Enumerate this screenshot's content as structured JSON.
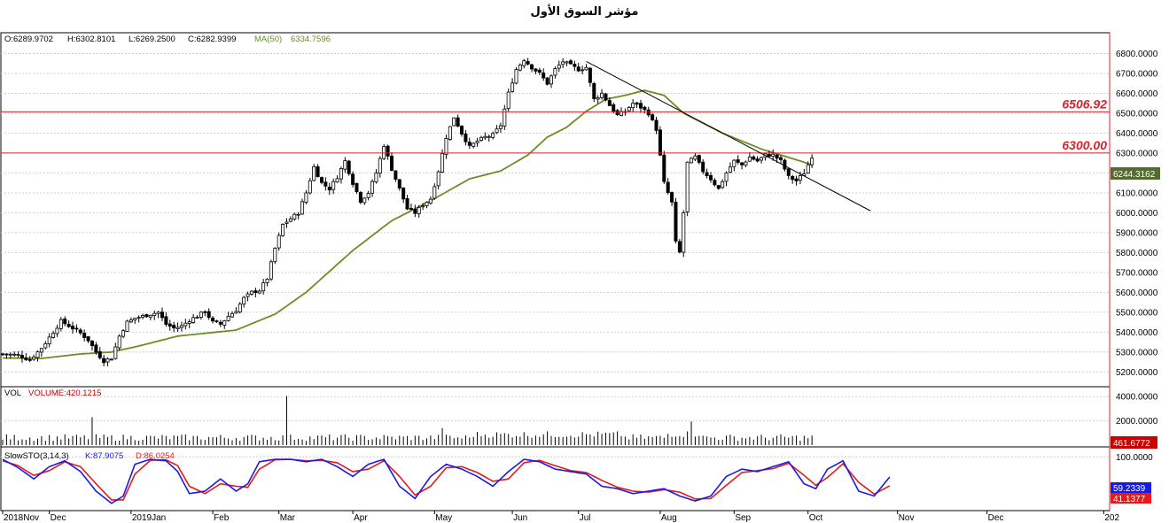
{
  "title": "مؤشر السوق الأول",
  "ohlc_readout": {
    "open": "O:6289.9702",
    "high": "H:6302.8101",
    "low": "L:6269.2500",
    "close": "C:6282.9399",
    "ma_label": "MA(50)",
    "ma_value": "6334.7596"
  },
  "colors": {
    "up_candle": "#ffffff",
    "down_candle": "#000000",
    "ma_line": "#6b8e23",
    "resistance_line": "#e0202a",
    "price_label_bg": "#556b2f",
    "volume_label_bg": "#cc0000",
    "k_line": "#1a1ae6",
    "d_line": "#e61a1a"
  },
  "chart_data": [
    {
      "type": "candlestick",
      "name": "price",
      "y_ticks": [
        "6800.0000",
        "6700.0000",
        "6600.0000",
        "6500.0000",
        "6400.0000",
        "6300.0000",
        "6200.0000",
        "6100.0000",
        "6000.0000",
        "5900.0000",
        "5800.0000",
        "5700.0000",
        "5600.0000",
        "5500.0000",
        "5400.0000",
        "5300.0000",
        "5200.0000"
      ],
      "y_tick_values": [
        6800,
        6700,
        6600,
        6500,
        6400,
        6300,
        6200,
        6100,
        6000,
        5900,
        5800,
        5700,
        5600,
        5500,
        5400,
        5300,
        5200
      ],
      "ylim": [
        5130,
        6900
      ],
      "last_price_label": "6244.3162",
      "last_price_value": 6244.3162,
      "horizontal_lines": [
        {
          "label": "6506.92",
          "value": 6506.92
        },
        {
          "label": "6300.00",
          "value": 6300.0
        }
      ],
      "trendline": {
        "from": {
          "bar": 150,
          "value": 6760
        },
        "to": {
          "bar": 223,
          "value": 6010
        }
      },
      "bar_count": 250,
      "price_anchors": [
        [
          0,
          5290
        ],
        [
          4,
          5285
        ],
        [
          7,
          5260
        ],
        [
          10,
          5320
        ],
        [
          13,
          5400
        ],
        [
          15,
          5455
        ],
        [
          18,
          5420
        ],
        [
          20,
          5395
        ],
        [
          22,
          5360
        ],
        [
          24,
          5300
        ],
        [
          26,
          5255
        ],
        [
          28,
          5270
        ],
        [
          30,
          5380
        ],
        [
          32,
          5450
        ],
        [
          34,
          5470
        ],
        [
          36,
          5480
        ],
        [
          38,
          5490
        ],
        [
          40,
          5500
        ],
        [
          42,
          5440
        ],
        [
          44,
          5420
        ],
        [
          46,
          5430
        ],
        [
          48,
          5460
        ],
        [
          50,
          5480
        ],
        [
          52,
          5505
        ],
        [
          54,
          5450
        ],
        [
          56,
          5440
        ],
        [
          58,
          5480
        ],
        [
          60,
          5510
        ],
        [
          62,
          5570
        ],
        [
          64,
          5600
        ],
        [
          66,
          5610
        ],
        [
          68,
          5670
        ],
        [
          70,
          5820
        ],
        [
          72,
          5940
        ],
        [
          74,
          5970
        ],
        [
          76,
          6000
        ],
        [
          78,
          6100
        ],
        [
          80,
          6230
        ],
        [
          82,
          6150
        ],
        [
          84,
          6120
        ],
        [
          86,
          6180
        ],
        [
          88,
          6260
        ],
        [
          90,
          6150
        ],
        [
          92,
          6060
        ],
        [
          94,
          6100
        ],
        [
          96,
          6200
        ],
        [
          98,
          6340
        ],
        [
          100,
          6220
        ],
        [
          102,
          6120
        ],
        [
          104,
          6020
        ],
        [
          106,
          6000
        ],
        [
          108,
          6040
        ],
        [
          110,
          6070
        ],
        [
          112,
          6210
        ],
        [
          114,
          6380
        ],
        [
          116,
          6480
        ],
        [
          118,
          6400
        ],
        [
          120,
          6330
        ],
        [
          122,
          6360
        ],
        [
          124,
          6380
        ],
        [
          126,
          6390
        ],
        [
          128,
          6440
        ],
        [
          130,
          6600
        ],
        [
          132,
          6720
        ],
        [
          134,
          6770
        ],
        [
          136,
          6730
        ],
        [
          138,
          6700
        ],
        [
          140,
          6650
        ],
        [
          142,
          6720
        ],
        [
          144,
          6760
        ],
        [
          146,
          6740
        ],
        [
          148,
          6720
        ],
        [
          150,
          6730
        ],
        [
          152,
          6570
        ],
        [
          154,
          6600
        ],
        [
          156,
          6540
        ],
        [
          158,
          6490
        ],
        [
          160,
          6510
        ],
        [
          162,
          6550
        ],
        [
          164,
          6530
        ],
        [
          166,
          6500
        ],
        [
          168,
          6420
        ],
        [
          170,
          6150
        ],
        [
          172,
          6050
        ],
        [
          173,
          5850
        ],
        [
          174,
          5800
        ],
        [
          175,
          6000
        ],
        [
          176,
          6250
        ],
        [
          178,
          6280
        ],
        [
          180,
          6210
        ],
        [
          182,
          6170
        ],
        [
          184,
          6120
        ],
        [
          186,
          6200
        ],
        [
          188,
          6260
        ],
        [
          190,
          6240
        ],
        [
          192,
          6280
        ],
        [
          194,
          6260
        ],
        [
          196,
          6290
        ],
        [
          198,
          6290
        ],
        [
          200,
          6260
        ],
        [
          202,
          6180
        ],
        [
          204,
          6160
        ],
        [
          206,
          6200
        ],
        [
          208,
          6283
        ]
      ],
      "ma_anchors": [
        [
          0,
          5270
        ],
        [
          10,
          5268
        ],
        [
          20,
          5290
        ],
        [
          28,
          5300
        ],
        [
          35,
          5330
        ],
        [
          45,
          5380
        ],
        [
          60,
          5410
        ],
        [
          70,
          5490
        ],
        [
          78,
          5600
        ],
        [
          90,
          5810
        ],
        [
          100,
          5960
        ],
        [
          110,
          6060
        ],
        [
          120,
          6170
        ],
        [
          128,
          6210
        ],
        [
          135,
          6290
        ],
        [
          140,
          6380
        ],
        [
          145,
          6430
        ],
        [
          150,
          6510
        ],
        [
          155,
          6570
        ],
        [
          160,
          6590
        ],
        [
          165,
          6615
        ],
        [
          170,
          6590
        ],
        [
          175,
          6500
        ],
        [
          180,
          6450
        ],
        [
          185,
          6400
        ],
        [
          190,
          6360
        ],
        [
          195,
          6320
        ],
        [
          200,
          6290
        ],
        [
          205,
          6260
        ],
        [
          208,
          6240
        ]
      ]
    },
    {
      "type": "bar",
      "name": "volume",
      "label": "VOL",
      "value_label": "VOLUME:420.1215",
      "y_ticks": [
        "4000.0000",
        "2000.0000"
      ],
      "y_tick_values": [
        4000,
        2000
      ],
      "ylim": [
        0,
        4600
      ],
      "last_label": "461.6772",
      "spikes": [
        [
          23,
          2300
        ],
        [
          73,
          4050
        ],
        [
          113,
          1400
        ],
        [
          177,
          1950
        ]
      ]
    },
    {
      "type": "line",
      "name": "stochastic",
      "label": "SlowSTO(3,14,3)",
      "k_label": "K:87.9075",
      "d_label": "D:86.0254",
      "y_ticks": [
        "100.0000"
      ],
      "y_tick_values": [
        100
      ],
      "ylim": [
        -8,
        115
      ],
      "k_last_label": "59.2339",
      "d_last_label": "41.1377",
      "k_anchors": [
        [
          0,
          95
        ],
        [
          4,
          78
        ],
        [
          8,
          55
        ],
        [
          12,
          80
        ],
        [
          16,
          92
        ],
        [
          20,
          70
        ],
        [
          24,
          30
        ],
        [
          28,
          5
        ],
        [
          31,
          20
        ],
        [
          34,
          85
        ],
        [
          38,
          95
        ],
        [
          42,
          92
        ],
        [
          45,
          70
        ],
        [
          48,
          25
        ],
        [
          52,
          30
        ],
        [
          56,
          55
        ],
        [
          60,
          30
        ],
        [
          63,
          45
        ],
        [
          66,
          90
        ],
        [
          70,
          95
        ],
        [
          74,
          95
        ],
        [
          78,
          90
        ],
        [
          82,
          95
        ],
        [
          86,
          80
        ],
        [
          90,
          60
        ],
        [
          94,
          85
        ],
        [
          98,
          95
        ],
        [
          102,
          40
        ],
        [
          106,
          15
        ],
        [
          110,
          60
        ],
        [
          114,
          85
        ],
        [
          118,
          75
        ],
        [
          122,
          60
        ],
        [
          126,
          40
        ],
        [
          130,
          70
        ],
        [
          134,
          95
        ],
        [
          138,
          90
        ],
        [
          142,
          75
        ],
        [
          146,
          70
        ],
        [
          150,
          65
        ],
        [
          154,
          40
        ],
        [
          158,
          35
        ],
        [
          162,
          25
        ],
        [
          166,
          30
        ],
        [
          170,
          35
        ],
        [
          174,
          20
        ],
        [
          178,
          10
        ],
        [
          182,
          20
        ],
        [
          186,
          60
        ],
        [
          190,
          75
        ],
        [
          194,
          70
        ],
        [
          198,
          80
        ],
        [
          202,
          90
        ],
        [
          206,
          45
        ],
        [
          209,
          35
        ],
        [
          212,
          75
        ],
        [
          216,
          92
        ],
        [
          220,
          30
        ],
        [
          224,
          20
        ],
        [
          228,
          59
        ]
      ],
      "d_anchors": [
        [
          0,
          92
        ],
        [
          4,
          82
        ],
        [
          8,
          62
        ],
        [
          12,
          72
        ],
        [
          16,
          90
        ],
        [
          20,
          80
        ],
        [
          24,
          45
        ],
        [
          28,
          12
        ],
        [
          31,
          12
        ],
        [
          34,
          65
        ],
        [
          38,
          93
        ],
        [
          42,
          94
        ],
        [
          45,
          82
        ],
        [
          48,
          40
        ],
        [
          52,
          25
        ],
        [
          56,
          45
        ],
        [
          60,
          40
        ],
        [
          63,
          38
        ],
        [
          66,
          75
        ],
        [
          70,
          94
        ],
        [
          74,
          95
        ],
        [
          78,
          92
        ],
        [
          82,
          93
        ],
        [
          86,
          88
        ],
        [
          90,
          70
        ],
        [
          94,
          75
        ],
        [
          98,
          92
        ],
        [
          102,
          60
        ],
        [
          106,
          22
        ],
        [
          110,
          40
        ],
        [
          114,
          78
        ],
        [
          118,
          80
        ],
        [
          122,
          68
        ],
        [
          126,
          50
        ],
        [
          130,
          55
        ],
        [
          134,
          88
        ],
        [
          138,
          93
        ],
        [
          142,
          82
        ],
        [
          146,
          72
        ],
        [
          150,
          68
        ],
        [
          154,
          52
        ],
        [
          158,
          38
        ],
        [
          162,
          30
        ],
        [
          166,
          28
        ],
        [
          170,
          33
        ],
        [
          174,
          28
        ],
        [
          178,
          14
        ],
        [
          182,
          15
        ],
        [
          186,
          42
        ],
        [
          190,
          68
        ],
        [
          194,
          72
        ],
        [
          198,
          76
        ],
        [
          202,
          87
        ],
        [
          206,
          62
        ],
        [
          209,
          42
        ],
        [
          212,
          58
        ],
        [
          216,
          86
        ],
        [
          220,
          48
        ],
        [
          224,
          24
        ],
        [
          228,
          41
        ]
      ]
    }
  ],
  "x_axis": {
    "labels": [
      "2018Nov",
      "Dec",
      "2019Jan",
      "Feb",
      "Mar",
      "Apr",
      "May",
      "Jun",
      "Jul",
      "Aug",
      "Sep",
      "Oct",
      "Nov",
      "Dec",
      "202"
    ],
    "label_bars": [
      0,
      12,
      33,
      54,
      71,
      90,
      111,
      131,
      148,
      169,
      188,
      207,
      230,
      253,
      283
    ]
  }
}
